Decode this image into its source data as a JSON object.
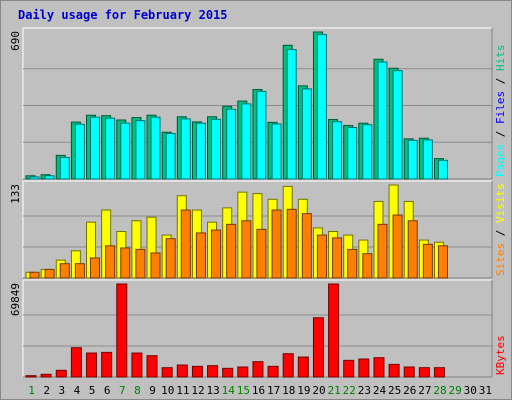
{
  "chart_data": [
    {
      "type": "bar",
      "title": "Daily usage for February 2015",
      "ymax": "690",
      "side_labels": [
        "Pages",
        "Files",
        "Hits"
      ],
      "colors": {
        "Pages": "#00ffff",
        "Files": "#0000ff",
        "Hits": "#00c080"
      },
      "categories": [
        "1",
        "2",
        "3",
        "4",
        "5",
        "6",
        "7",
        "8",
        "9",
        "10",
        "11",
        "12",
        "13",
        "14",
        "15",
        "16",
        "17",
        "18",
        "19",
        "20",
        "21",
        "22",
        "23",
        "24",
        "25",
        "26",
        "27",
        "28",
        "29",
        "30",
        "31"
      ],
      "series": [
        {
          "name": "Hits",
          "values": [
            15,
            20,
            110,
            265,
            297,
            295,
            275,
            286,
            297,
            218,
            290,
            266,
            290,
            339,
            363,
            417,
            264,
            623,
            434,
            685,
            277,
            249,
            260,
            558,
            516,
            187,
            190,
            95,
            0,
            0,
            0
          ]
        },
        {
          "name": "Pages",
          "values": [
            10,
            15,
            100,
            255,
            288,
            283,
            260,
            272,
            288,
            212,
            280,
            260,
            278,
            325,
            350,
            408,
            256,
            603,
            420,
            673,
            267,
            240,
            253,
            545,
            505,
            180,
            182,
            87,
            0,
            0,
            0
          ]
        }
      ]
    },
    {
      "type": "bar",
      "ymax": "133",
      "side_labels": [
        "Sites",
        "Visits"
      ],
      "colors": {
        "Sites": "#ff8000",
        "Visits": "#ffff00"
      },
      "categories": [
        "1",
        "2",
        "3",
        "4",
        "5",
        "6",
        "7",
        "8",
        "9",
        "10",
        "11",
        "12",
        "13",
        "14",
        "15",
        "16",
        "17",
        "18",
        "19",
        "20",
        "21",
        "22",
        "23",
        "24",
        "25",
        "26",
        "27",
        "28",
        "29",
        "30",
        "31"
      ],
      "series": [
        {
          "name": "Visits",
          "values": [
            8,
            12,
            25,
            38,
            78,
            95,
            65,
            80,
            85,
            60,
            115,
            95,
            78,
            98,
            120,
            118,
            110,
            128,
            110,
            70,
            65,
            60,
            53,
            107,
            130,
            107,
            53,
            50,
            0,
            0,
            0
          ]
        },
        {
          "name": "Sites",
          "values": [
            8,
            12,
            20,
            20,
            28,
            45,
            42,
            40,
            35,
            55,
            95,
            63,
            67,
            75,
            80,
            68,
            95,
            96,
            90,
            60,
            56,
            40,
            34,
            75,
            88,
            80,
            47,
            45,
            0,
            0,
            0
          ]
        }
      ]
    },
    {
      "type": "bar",
      "ymax": "69849",
      "side_labels": [
        "KBytes"
      ],
      "colors": {
        "KBytes": "#ff0000"
      },
      "categories": [
        "1",
        "2",
        "3",
        "4",
        "5",
        "6",
        "7",
        "8",
        "9",
        "10",
        "11",
        "12",
        "13",
        "14",
        "15",
        "16",
        "17",
        "18",
        "19",
        "20",
        "21",
        "22",
        "23",
        "24",
        "25",
        "26",
        "27",
        "28",
        "29",
        "30",
        "31"
      ],
      "series": [
        {
          "name": "KBytes",
          "values": [
            1000,
            2000,
            5000,
            22000,
            18000,
            18500,
            69849,
            18000,
            16000,
            7000,
            9000,
            8000,
            8500,
            6500,
            7500,
            11500,
            8000,
            17500,
            15000,
            44500,
            69849,
            12500,
            13500,
            14500,
            9500,
            7500,
            7000,
            7000,
            0,
            0,
            0
          ]
        }
      ]
    }
  ],
  "day_colors": {
    "weekday": "#000000",
    "weekend": "#008000"
  },
  "weekend_days": [
    1,
    7,
    8,
    14,
    15,
    21,
    22,
    28,
    29
  ]
}
